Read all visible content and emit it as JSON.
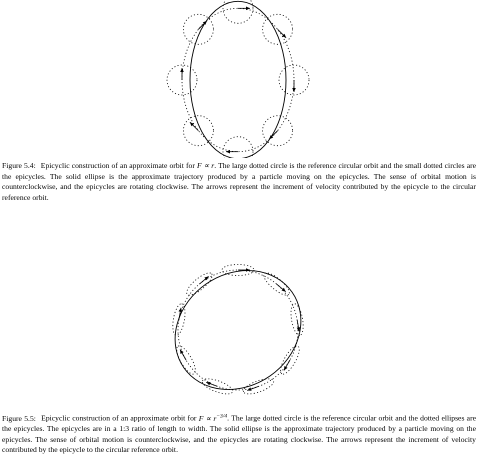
{
  "figure_54": {
    "label": "Figure 5.4:",
    "text_before_eq": "Epicyclic construction of an approximate orbit for",
    "equation": "F ∝ r",
    "text_after_eq": ". The large dotted circle is the reference circular orbit and the small dotted circles are the epicycles. The solid ellipse is the approximate trajectory produced by a particle moving on the epicycles. The sense of orbital motion is counterclockwise, and the epicycles are rotating clockwise. The arrows represent the increment of velocity contributed by the epicycle to the circular reference orbit."
  },
  "figure_55": {
    "label": "Figure 5.5:",
    "text_before_eq": "Epicyclic construction of an approximate orbit for",
    "equation": "F ∝ r^−3/4",
    "text_after_eq": ". The large dotted circle is the reference circular orbit and the dotted ellipses are the epicycles. The epicycles are in a 1:3 ratio of length to width. The solid ellipse is the approximate trajectory produced by a particle moving on the epicycles. The sense of orbital motion is counterclockwise, and the epicycles are rotating clockwise. The arrows represent the increment of velocity contributed by the epicycle to the circular reference orbit."
  }
}
